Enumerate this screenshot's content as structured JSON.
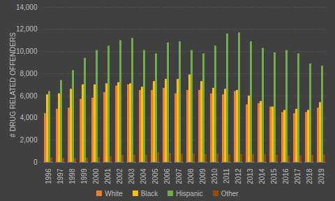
{
  "chart_data": {
    "type": "bar",
    "y_label": "# DRUG RELATED OFFENDERS",
    "categories": [
      "1996",
      "1997",
      "1998",
      "1999",
      "2000",
      "2001",
      "2002",
      "2003",
      "2004",
      "2005",
      "2006",
      "2007",
      "2008",
      "2009",
      "2010",
      "2011",
      "2012",
      "2013",
      "2014",
      "2015",
      "2016",
      "2017",
      "2018",
      "2019"
    ],
    "series": [
      {
        "name": "White",
        "color": "#ED7D31",
        "values": [
          4400,
          4800,
          4900,
          5700,
          5800,
          6300,
          6900,
          7000,
          6500,
          6500,
          6700,
          6200,
          6500,
          6500,
          6200,
          6100,
          6400,
          5200,
          5300,
          5000,
          4500,
          4400,
          4500,
          4900
        ]
      },
      {
        "name": "Black",
        "color": "#FFC000",
        "values": [
          6100,
          6200,
          6600,
          7000,
          7000,
          7100,
          7200,
          7100,
          6800,
          7300,
          7500,
          7500,
          7900,
          7300,
          6700,
          6600,
          6500,
          6000,
          5500,
          5000,
          4700,
          4800,
          4700,
          5400
        ]
      },
      {
        "name": "Hispanic",
        "color": "#70AD47",
        "values": [
          6400,
          7400,
          8300,
          9400,
          10100,
          10500,
          11000,
          11200,
          10100,
          9800,
          10800,
          10900,
          10100,
          9800,
          10500,
          11600,
          11700,
          10900,
          10300,
          9900,
          10100,
          9800,
          8900,
          8700
        ]
      },
      {
        "name": "Other",
        "color": "#9E480E",
        "values": [
          400,
          350,
          350,
          400,
          450,
          500,
          600,
          650,
          650,
          850,
          800,
          750,
          750,
          700,
          750,
          700,
          700,
          700,
          700,
          650,
          550,
          600,
          600,
          650
        ]
      }
    ],
    "ylim": [
      0,
      14000
    ],
    "yticks": [
      0,
      {
        "value": 2000,
        "label": "2,000"
      },
      {
        "value": 4000,
        "label": "4,000"
      },
      {
        "value": 6000,
        "label": "6,000"
      },
      {
        "value": 8000,
        "label": "8,000"
      },
      {
        "value": 10000,
        "label": "10,000"
      },
      {
        "value": 12000,
        "label": "12,000"
      },
      {
        "value": 14000,
        "label": "14,000"
      }
    ],
    "grid": true,
    "legend": "bottom"
  }
}
